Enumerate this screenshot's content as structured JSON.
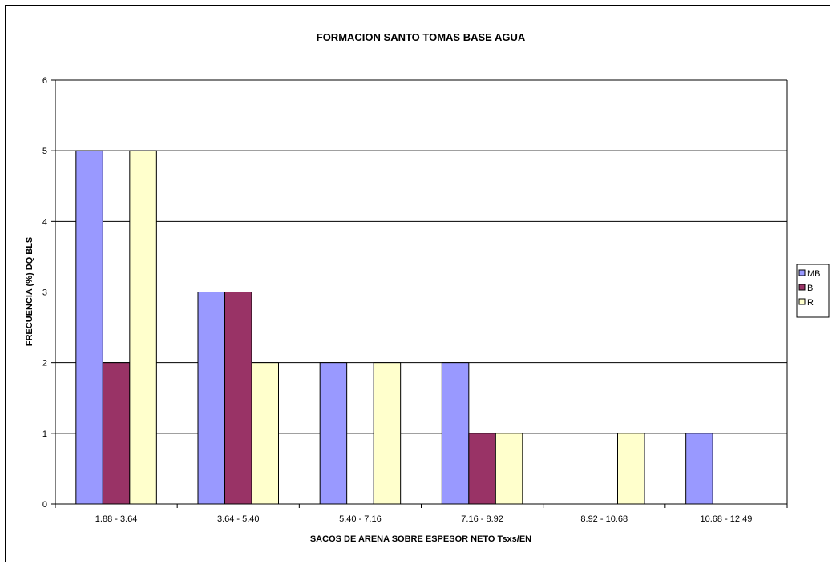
{
  "chart_data": {
    "type": "bar",
    "title": "FORMACION SANTO TOMAS BASE AGUA",
    "xlabel": "SACOS DE ARENA SOBRE ESPESOR NETO Tsxs/EN",
    "ylabel": "FRECUENCIA  (%) DQ BLS",
    "categories": [
      "1.88 - 3.64",
      "3.64 - 5.40",
      "5.40 - 7.16",
      "7.16 - 8.92",
      "8.92 - 10.68",
      "10.68 - 12.49"
    ],
    "series": [
      {
        "name": "MB",
        "color": "#9999ff",
        "values": [
          5,
          3,
          2,
          2,
          0,
          1
        ]
      },
      {
        "name": "B",
        "color": "#993366",
        "values": [
          2,
          3,
          0,
          1,
          0,
          0
        ]
      },
      {
        "name": "R",
        "color": "#ffffcc",
        "values": [
          5,
          2,
          2,
          1,
          1,
          0
        ]
      }
    ],
    "ylim": [
      0,
      6
    ],
    "yticks": [
      "0",
      "1",
      "2",
      "3",
      "4",
      "5",
      "6"
    ],
    "grid": true,
    "legend_position": "right"
  }
}
